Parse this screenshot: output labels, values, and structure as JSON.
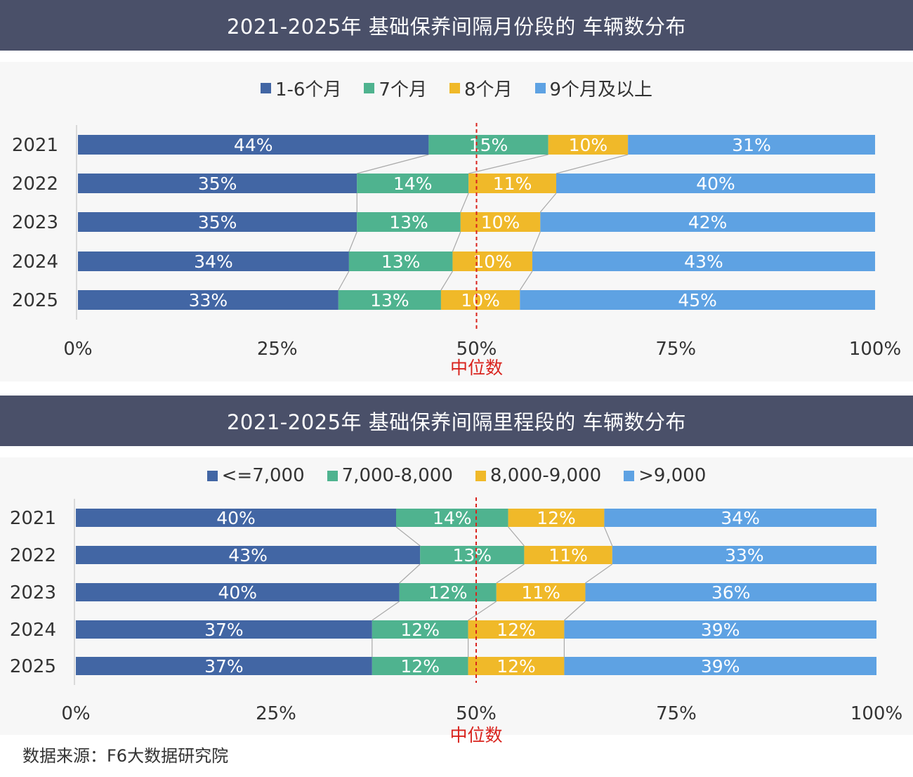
{
  "colors": {
    "title_bg": "#4a5069",
    "panel_bg": "#f7f7f7",
    "series": [
      "#4266a4",
      "#4fb38f",
      "#f0b929",
      "#5ea2e3"
    ],
    "median_line": "#d9231d",
    "connector": "#a9a9a9"
  },
  "median_label": "中位数",
  "source": "数据来源：F6大数据研究院",
  "chart_data": [
    {
      "type": "bar",
      "stacked": "percent",
      "orientation": "horizontal",
      "title": "2021-2025年 基础保养间隔月份段的 车辆数分布",
      "categories": [
        "2021",
        "2022",
        "2023",
        "2024",
        "2025"
      ],
      "series": [
        {
          "name": "1-6个月",
          "values": [
            44,
            35,
            35,
            34,
            33
          ]
        },
        {
          "name": "7个月",
          "values": [
            15,
            14,
            13,
            13,
            13
          ]
        },
        {
          "name": "8个月",
          "values": [
            10,
            11,
            10,
            10,
            10
          ]
        },
        {
          "name": "9个月及以上",
          "values": [
            31,
            40,
            42,
            43,
            45
          ]
        }
      ],
      "xlim": [
        0,
        100
      ],
      "xticks": [
        "0%",
        "25%",
        "50%",
        "75%",
        "100%"
      ],
      "median_at": 50,
      "legend": "top-center",
      "grid": false
    },
    {
      "type": "bar",
      "stacked": "percent",
      "orientation": "horizontal",
      "title": "2021-2025年 基础保养间隔里程段的 车辆数分布",
      "categories": [
        "2021",
        "2022",
        "2023",
        "2024",
        "2025"
      ],
      "series": [
        {
          "name": "<=7,000",
          "values": [
            40,
            43,
            40,
            37,
            37
          ]
        },
        {
          "name": "7,000-8,000",
          "values": [
            14,
            13,
            12,
            12,
            12
          ]
        },
        {
          "name": "8,000-9,000",
          "values": [
            12,
            11,
            11,
            12,
            12
          ]
        },
        {
          "name": ">9,000",
          "values": [
            34,
            33,
            36,
            39,
            39
          ]
        }
      ],
      "xlim": [
        0,
        100
      ],
      "xticks": [
        "0%",
        "25%",
        "50%",
        "75%",
        "100%"
      ],
      "median_at": 50,
      "legend": "top-center",
      "grid": false
    }
  ]
}
